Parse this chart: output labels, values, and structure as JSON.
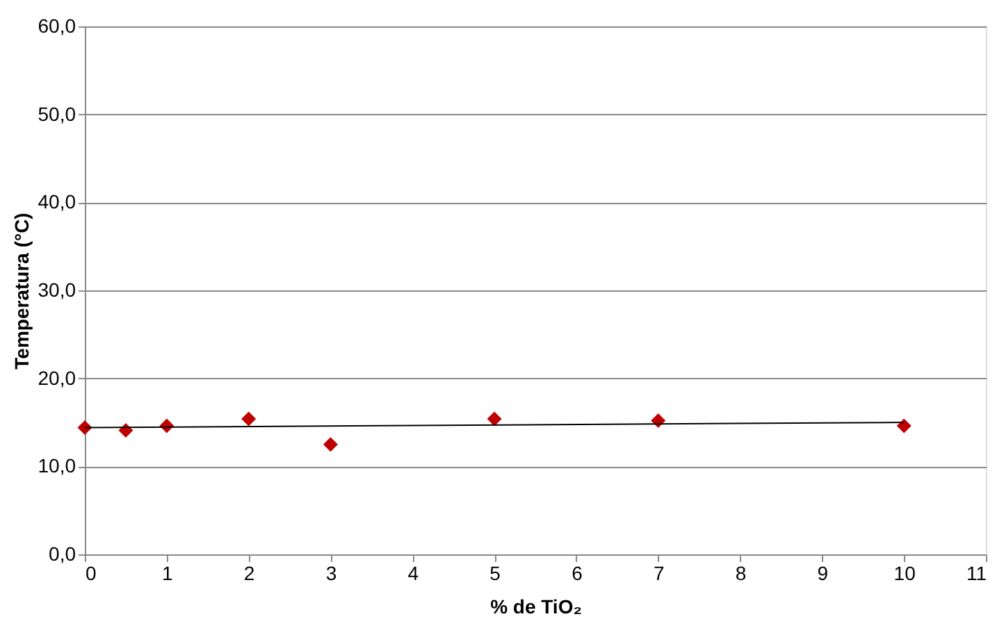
{
  "chart_data": {
    "type": "scatter",
    "xlabel": "% de TiO₂",
    "ylabel": "Temperatura (°C)",
    "xlim": [
      0,
      11
    ],
    "xticks": [
      0,
      1,
      2,
      3,
      4,
      5,
      6,
      7,
      8,
      9,
      10,
      11
    ],
    "ylim": [
      0,
      60
    ],
    "yticks": [
      {
        "value": 0,
        "label": "0,0"
      },
      {
        "value": 10,
        "label": "10,0"
      },
      {
        "value": 20,
        "label": "20,0"
      },
      {
        "value": 30,
        "label": "30,0"
      },
      {
        "value": 40,
        "label": "40,0"
      },
      {
        "value": 50,
        "label": "50,0"
      },
      {
        "value": 60,
        "label": "60,0"
      }
    ],
    "grid": "y",
    "marker": "diamond",
    "series": [
      {
        "color": "#c00000",
        "x": [
          0,
          0.5,
          1,
          2,
          3,
          5,
          7,
          10
        ],
        "values": [
          14.4,
          14.1,
          14.6,
          15.4,
          12.5,
          15.4,
          15.2,
          14.6
        ]
      },
      {
        "type": "line",
        "color": "#000000",
        "x": [
          0,
          10
        ],
        "values": [
          14.4,
          15.0
        ],
        "line_style": "solid",
        "marker": "none"
      }
    ]
  }
}
